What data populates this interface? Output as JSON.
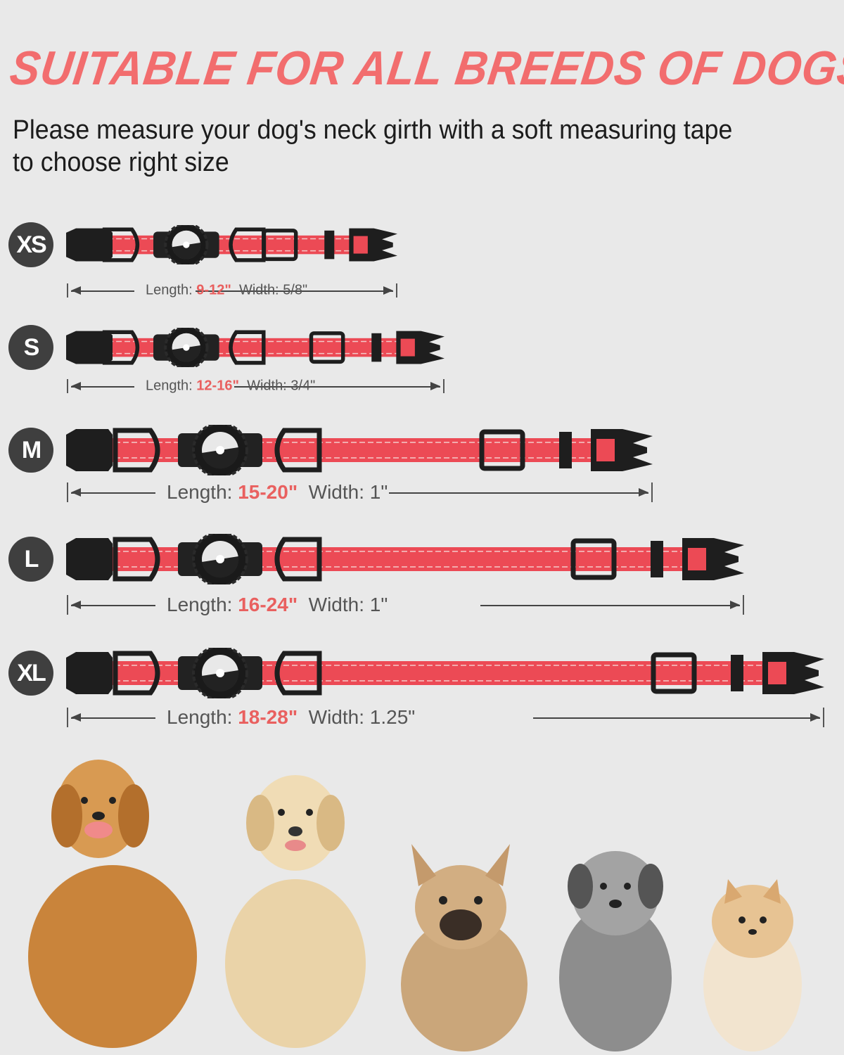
{
  "header": {
    "title": "SUITABLE FOR ALL BREEDS OF DOGS",
    "subtitle": "Please measure your dog's neck girth with a soft measuring tape to choose right size"
  },
  "colors": {
    "accent": "#f26d6e",
    "strap": "#ec4a55",
    "badge": "#3f3f3f",
    "background": "#e9e9e9"
  },
  "sizes": [
    {
      "label": "XS",
      "length_label": "Length:",
      "length": "9-12\"",
      "width_label": "Width:",
      "width": "5/8\""
    },
    {
      "label": "S",
      "length_label": "Length:",
      "length": "12-16\"",
      "width_label": "Width:",
      "width": "3/4\""
    },
    {
      "label": "M",
      "length_label": "Length:",
      "length": "15-20\"",
      "width_label": "Width:",
      "width": "1\""
    },
    {
      "label": "L",
      "length_label": "Length:",
      "length": "16-24\"",
      "width_label": "Width:",
      "width": "1\""
    },
    {
      "label": "XL",
      "length_label": "Length:",
      "length": "18-28\"",
      "width_label": "Width:",
      "width": "1.25\""
    }
  ],
  "dogs": [
    "golden-retriever",
    "labrador",
    "french-bulldog",
    "schnauzer-mix",
    "pomeranian"
  ]
}
